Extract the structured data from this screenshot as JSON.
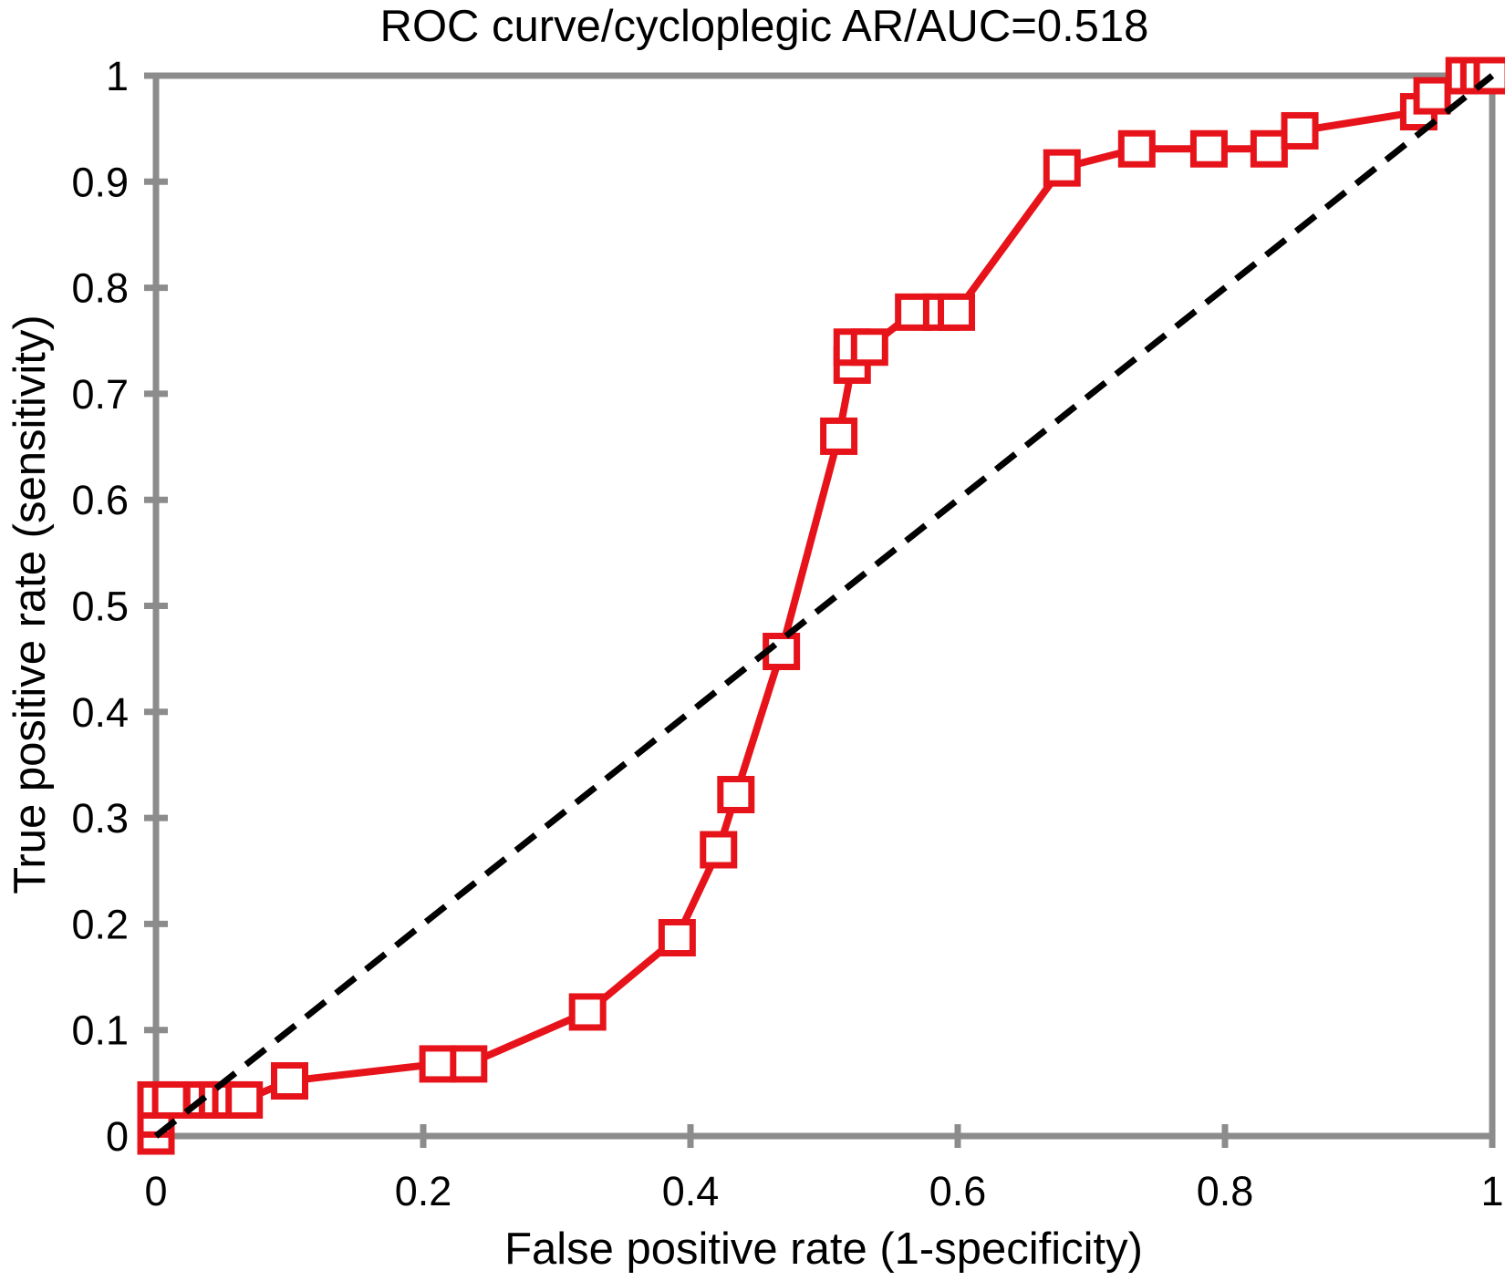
{
  "chart_data": {
    "type": "line",
    "title": "ROC curve/cycloplegic AR/AUC=0.518",
    "xlabel": "False positive rate (1-specificity)",
    "ylabel": "True positive rate (sensitivity)",
    "auc": 0.518,
    "xlim": [
      0,
      1
    ],
    "ylim": [
      0,
      1
    ],
    "grid": false,
    "legend": false,
    "x_ticks": [
      0,
      0.2,
      0.4,
      0.6,
      0.8,
      1
    ],
    "x_tick_labels": [
      "0",
      "0.2",
      "0.4",
      "0.6",
      "0.8",
      "1"
    ],
    "y_ticks": [
      0,
      0.1,
      0.2,
      0.3,
      0.4,
      0.5,
      0.6,
      0.7,
      0.8,
      0.9,
      1
    ],
    "y_tick_labels": [
      "0",
      "0.1",
      "0.2",
      "0.3",
      "0.4",
      "0.5",
      "0.6",
      "0.7",
      "0.8",
      "0.9",
      "1"
    ],
    "colors": {
      "roc_line": "#e7131a",
      "marker_fill": "#ffffff",
      "reference_line": "#000000",
      "axis": "#8c8c8c",
      "text": "#000000",
      "background": "#ffffff"
    },
    "series": [
      {
        "name": "roc-curve",
        "style": "solid",
        "marker": "open-square",
        "points": [
          [
            0,
            0
          ],
          [
            0,
            0.016
          ],
          [
            0,
            0.034
          ],
          [
            0.011,
            0.034
          ],
          [
            0.035,
            0.034
          ],
          [
            0.046,
            0.034
          ],
          [
            0.056,
            0.034
          ],
          [
            0.066,
            0.034
          ],
          [
            0.1,
            0.052
          ],
          [
            0.211,
            0.068
          ],
          [
            0.234,
            0.068
          ],
          [
            0.323,
            0.117
          ],
          [
            0.39,
            0.187
          ],
          [
            0.421,
            0.27
          ],
          [
            0.434,
            0.322
          ],
          [
            0.468,
            0.457
          ],
          [
            0.511,
            0.66
          ],
          [
            0.521,
            0.727
          ],
          [
            0.521,
            0.744
          ],
          [
            0.534,
            0.744
          ],
          [
            0.567,
            0.777
          ],
          [
            0.588,
            0.777
          ],
          [
            0.599,
            0.777
          ],
          [
            0.678,
            0.913
          ],
          [
            0.734,
            0.931
          ],
          [
            0.788,
            0.931
          ],
          [
            0.833,
            0.931
          ],
          [
            0.856,
            0.948
          ],
          [
            0.945,
            0.966
          ],
          [
            0.955,
            0.981
          ],
          [
            0.979,
            1
          ],
          [
            0.99,
            1
          ],
          [
            1,
            1
          ]
        ]
      },
      {
        "name": "chance-diagonal",
        "style": "dashed",
        "marker": "none",
        "points": [
          [
            0,
            0
          ],
          [
            1,
            1
          ]
        ]
      }
    ]
  }
}
